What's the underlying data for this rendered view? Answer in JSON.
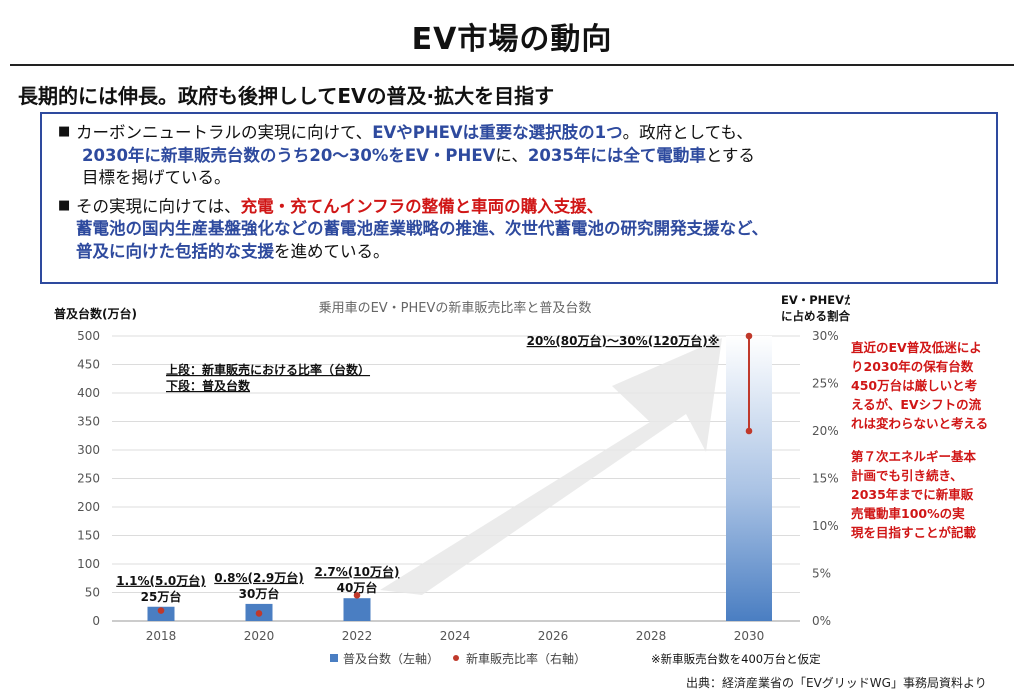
{
  "page": {
    "title": "EV市場の動向",
    "subtitle": "長期的には伸長。政府も後押ししてEVの普及·拡大を目指す"
  },
  "summary": {
    "b1": [
      "カーボンニュートラルの実現に向けて、",
      "EVやPHEVは重要な選択肢の1つ",
      "。政府としても、",
      "2030年に新車販売台数のうち20～30%をEV・PHEV",
      "に、",
      "2035年には全て電動車",
      "とする",
      "目標を掲げている。"
    ],
    "b2": [
      "その実現に向けては、",
      "充電・充てんインフラの整備と車両の購入支援、",
      "蓄電池の国内生産基盤強化などの蓄電池産業戦略の推進、次世代蓄電池の研究開発支援など、",
      "普及に向けた包括的な支援",
      "を進めている。"
    ]
  },
  "chart_data": {
    "type": "bar",
    "title": "乗用車のEV・PHEVの新車販売比率と普及台数",
    "x": [
      "2018",
      "2020",
      "2022",
      "2024",
      "2026",
      "2028",
      "2030"
    ],
    "ylabel": "普及台数(万台)",
    "y2label": [
      "EV・PHEVが新車販売",
      "に占める割合（%）"
    ],
    "ylim": [
      0,
      500
    ],
    "y2lim": [
      0,
      30
    ],
    "yticks": [
      "0",
      "50",
      "100",
      "150",
      "200",
      "250",
      "300",
      "350",
      "400",
      "450",
      "500"
    ],
    "y2ticks": [
      "0%",
      "5%",
      "10%",
      "15%",
      "20%",
      "25%",
      "30%"
    ],
    "bars": {
      "name": "普及台数（左軸）",
      "color": "#4a7ec2",
      "points": [
        {
          "x": "2018",
          "value": 25
        },
        {
          "x": "2020",
          "value": 30
        },
        {
          "x": "2022",
          "value": 40
        },
        {
          "x": "2030",
          "value": 500
        }
      ]
    },
    "ratio": {
      "name": "新車販売比率（右軸）",
      "color": "#c0392b",
      "points": [
        {
          "x": "2018",
          "value": 1.1
        },
        {
          "x": "2020",
          "value": 0.8
        },
        {
          "x": "2022",
          "value": 2.7
        }
      ],
      "range_2030": [
        20,
        30
      ]
    },
    "annotations": [
      {
        "x": "2018",
        "top": "1.1%(5.0万台)",
        "bottom": "25万台"
      },
      {
        "x": "2020",
        "top": "0.8%(2.9万台)",
        "bottom": "30万台"
      },
      {
        "x": "2022",
        "top": "2.7%(10万台)",
        "bottom": "40万台"
      }
    ],
    "target_label": "20%(80万台)～30%(120万台)※",
    "legend_note": [
      "上段：新車販売における比率（台数）",
      "下段：普及台数"
    ],
    "footnote": "※新車販売台数を400万台と仮定",
    "grid": true
  },
  "right_note": {
    "p1": "直近のEV普及低迷によ\nり2030年の保有台数\n450万台は厳しいと考\nえるが、EVシフトの流\nれは変わらないと考える",
    "p2": "第７次エネルギー基本\n計画でも引き続き、\n2035年までに新車販\n売電動車100%の実\n現を目指すことが記載"
  },
  "source": "出典：経済産業省の「EVグリッドWG」事務局資料より",
  "colors": {
    "accent_blue": "#2e4a9e",
    "accent_red": "#d01616"
  }
}
